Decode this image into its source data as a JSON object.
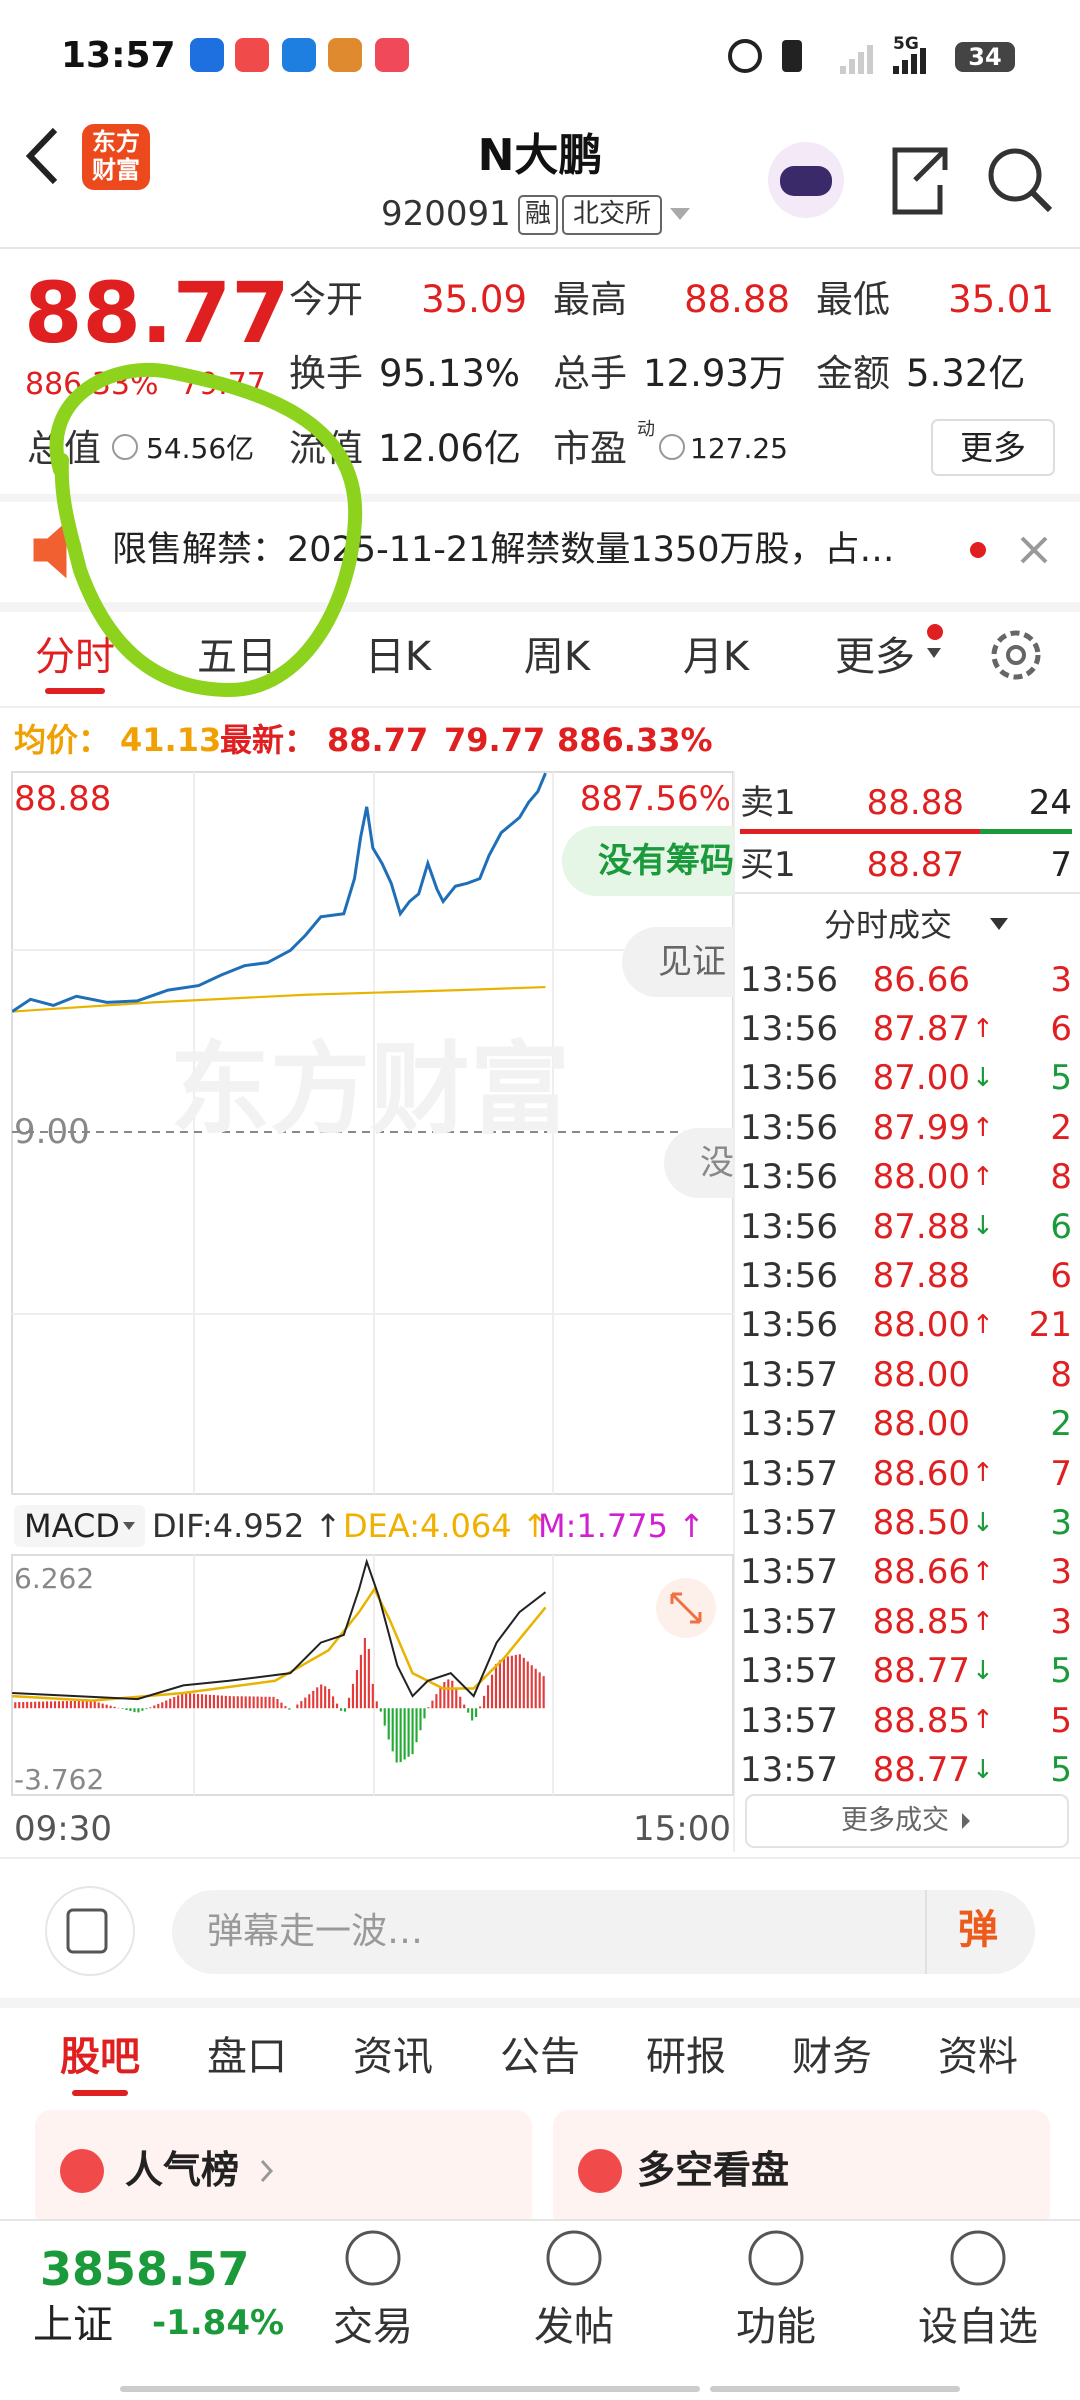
{
  "status_bar": {
    "time": "13:57",
    "network": "5G",
    "battery": "34"
  },
  "header": {
    "logo": "东方财富",
    "title": "N大鹏",
    "code": "920091",
    "tags": [
      "融",
      "北交所"
    ]
  },
  "quote": {
    "price": "88.77",
    "change_pct": "886.33%",
    "change": "79.77",
    "stats": [
      {
        "label": "今开",
        "value": "35.09"
      },
      {
        "label": "最高",
        "value": "88.88"
      },
      {
        "label": "最低",
        "value": "35.01"
      },
      {
        "label": "换手",
        "value": "95.13%"
      },
      {
        "label": "总手",
        "value": "12.93万"
      },
      {
        "label": "金额",
        "value": "5.32亿"
      },
      {
        "label": "总值",
        "value": "54.56亿"
      },
      {
        "label": "流值",
        "value": "12.06亿"
      },
      {
        "label": "市盈",
        "value": "127.25"
      }
    ],
    "pe_superscript": "动",
    "more": "更多"
  },
  "notice": {
    "text": "限售解禁：2025-11-21解禁数量1350万股，占…"
  },
  "chart_tabs": [
    "分时",
    "五日",
    "日K",
    "周K",
    "月K",
    "更多"
  ],
  "summary": {
    "avg_label": "均价：",
    "avg": "41.13",
    "latest_label": "最新：",
    "latest": "88.77",
    "change": "79.77",
    "change_pct": "886.33%"
  },
  "intraday": {
    "high": "88.88",
    "high_pct": "887.56%",
    "mid": "9.00",
    "watermark": "东方财富",
    "badges": [
      "没有筹码",
      "见证",
      "没"
    ]
  },
  "order_book": {
    "ask": {
      "label": "卖1",
      "price": "88.88",
      "volume": "24"
    },
    "bid": {
      "label": "买1",
      "price": "88.87",
      "volume": "7"
    },
    "trades_title": "分时成交",
    "trades": [
      {
        "time": "13:56",
        "price": "86.66",
        "volume": "3",
        "volume_color": "#e02020"
      },
      {
        "time": "13:56",
        "price": "87.87",
        "arrow": "↑",
        "volume": "6",
        "volume_color": "#e02020"
      },
      {
        "time": "13:56",
        "price": "87.00",
        "arrow": "↓",
        "volume": "5",
        "volume_color": "#1a9a3a"
      },
      {
        "time": "13:56",
        "price": "87.99",
        "arrow": "↑",
        "volume": "2",
        "volume_color": "#e02020"
      },
      {
        "time": "13:56",
        "price": "88.00",
        "arrow": "↑",
        "volume": "8",
        "volume_color": "#e02020"
      },
      {
        "time": "13:56",
        "price": "87.88",
        "arrow": "↓",
        "volume": "6",
        "volume_color": "#1a9a3a"
      },
      {
        "time": "13:56",
        "price": "87.88",
        "volume": "6",
        "volume_color": "#e02020"
      },
      {
        "time": "13:56",
        "price": "88.00",
        "arrow": "↑",
        "volume": "21",
        "volume_color": "#e02020"
      },
      {
        "time": "13:57",
        "price": "88.00",
        "volume": "8",
        "volume_color": "#e02020"
      },
      {
        "time": "13:57",
        "price": "88.00",
        "volume": "2",
        "volume_color": "#1a9a3a"
      },
      {
        "time": "13:57",
        "price": "88.60",
        "arrow": "↑",
        "volume": "7",
        "volume_color": "#e02020"
      },
      {
        "time": "13:57",
        "price": "88.50",
        "arrow": "↓",
        "volume": "3",
        "volume_color": "#1a9a3a"
      },
      {
        "time": "13:57",
        "price": "88.66",
        "arrow": "↑",
        "volume": "3",
        "volume_color": "#e02020"
      },
      {
        "time": "13:57",
        "price": "88.85",
        "arrow": "↑",
        "volume": "3",
        "volume_color": "#e02020"
      },
      {
        "time": "13:57",
        "price": "88.77",
        "arrow": "↓",
        "volume": "5",
        "volume_color": "#1a9a3a"
      },
      {
        "time": "13:57",
        "price": "88.85",
        "arrow": "↑",
        "volume": "5",
        "volume_color": "#e02020"
      },
      {
        "time": "13:57",
        "price": "88.77",
        "arrow": "↓",
        "volume": "5",
        "volume_color": "#1a9a3a"
      }
    ],
    "more": "更多成交"
  },
  "macd": {
    "label": "MACD",
    "dif": "DIF:4.952 ↑",
    "dea": "DEA:4.064 ↑",
    "m": "M:1.775 ↑",
    "max": "6.262",
    "min": "-3.762",
    "start": "09:30",
    "end": "15:00"
  },
  "comment_bar": {
    "placeholder": "弹幕走一波…",
    "button": "弹"
  },
  "tabs": [
    "股吧",
    "盘口",
    "资讯",
    "公告",
    "研报",
    "财务",
    "资料"
  ],
  "cards": [
    "人气榜",
    "多空看盘"
  ],
  "bottom_bar": {
    "index_value": "3858.57",
    "index_name": "上证",
    "index_change": "-1.84%",
    "actions": [
      "交易",
      "发帖",
      "功能",
      "设自选"
    ]
  }
}
